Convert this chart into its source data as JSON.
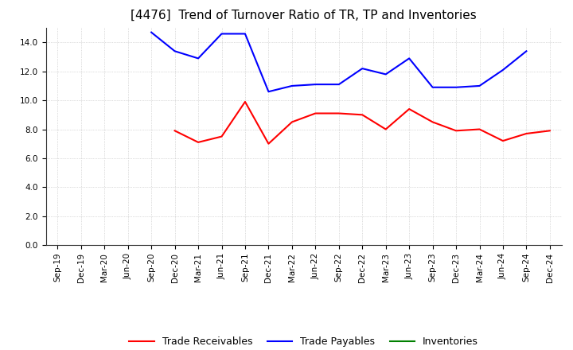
{
  "title": "[4476]  Trend of Turnover Ratio of TR, TP and Inventories",
  "x_labels": [
    "Sep-19",
    "Dec-19",
    "Mar-20",
    "Jun-20",
    "Sep-20",
    "Dec-20",
    "Mar-21",
    "Jun-21",
    "Sep-21",
    "Dec-21",
    "Mar-22",
    "Jun-22",
    "Sep-22",
    "Dec-22",
    "Mar-23",
    "Jun-23",
    "Sep-23",
    "Dec-23",
    "Mar-24",
    "Jun-24",
    "Sep-24",
    "Dec-24"
  ],
  "trade_receivables": [
    null,
    null,
    null,
    null,
    null,
    7.9,
    7.1,
    7.5,
    9.9,
    7.0,
    8.5,
    9.1,
    9.1,
    9.0,
    8.0,
    9.4,
    8.5,
    7.9,
    8.0,
    7.2,
    7.7,
    7.9
  ],
  "trade_payables": [
    null,
    null,
    null,
    null,
    14.7,
    13.4,
    12.9,
    14.6,
    14.6,
    10.6,
    11.0,
    11.1,
    11.1,
    12.2,
    11.8,
    12.9,
    10.9,
    10.9,
    11.0,
    12.1,
    13.4,
    null
  ],
  "inventories": [
    null,
    null,
    null,
    null,
    null,
    null,
    null,
    null,
    null,
    null,
    null,
    null,
    null,
    null,
    null,
    null,
    null,
    null,
    null,
    null,
    null,
    null
  ],
  "ylim": [
    0,
    15.0
  ],
  "yticks": [
    0.0,
    2.0,
    4.0,
    6.0,
    8.0,
    10.0,
    12.0,
    14.0
  ],
  "color_tr": "#FF0000",
  "color_tp": "#0000FF",
  "color_inv": "#008000",
  "legend_labels": [
    "Trade Receivables",
    "Trade Payables",
    "Inventories"
  ],
  "background_color": "#FFFFFF",
  "plot_bg_color": "#FFFFFF",
  "grid_color": "#AAAAAA",
  "title_fontsize": 11,
  "tick_fontsize": 7.5,
  "legend_fontsize": 9
}
